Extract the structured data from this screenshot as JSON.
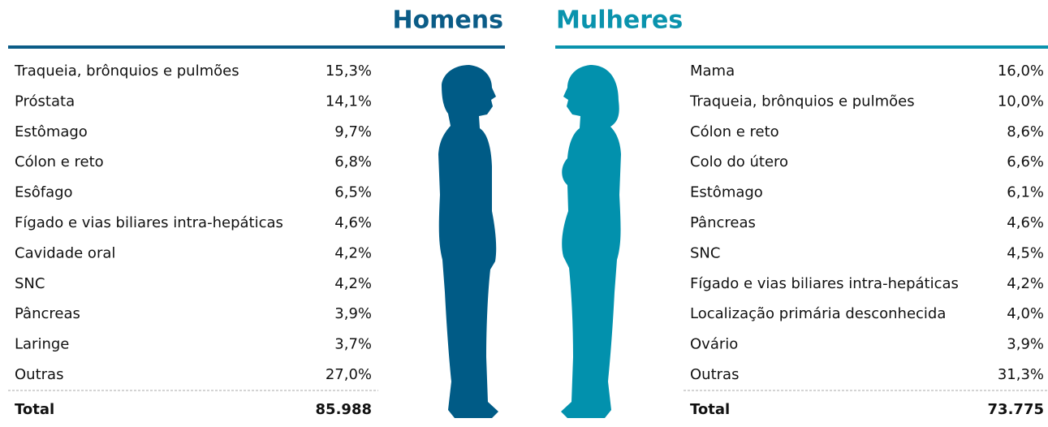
{
  "header": {
    "left_title": "Homens",
    "right_title": "Mulheres"
  },
  "homens": {
    "rows": [
      [
        "Traqueia, brônquios e pulmões",
        "15,3%"
      ],
      [
        "Próstata",
        "14,1%"
      ],
      [
        "Estômago",
        "9,7%"
      ],
      [
        "Cólon e reto",
        "6,8%"
      ],
      [
        "Esôfago",
        "6,5%"
      ],
      [
        "Fígado e vias biliares intra-hepáticas",
        "4,6%"
      ],
      [
        "Cavidade oral",
        "4,2%"
      ],
      [
        "SNC",
        "4,2%"
      ],
      [
        "Pâncreas",
        "3,9%"
      ],
      [
        "Laringe",
        "3,7%"
      ],
      [
        "Outras",
        "27,0%"
      ]
    ],
    "total": [
      "Total",
      "85.988"
    ]
  },
  "mulheres": {
    "rows": [
      [
        "Mama",
        "16,0%"
      ],
      [
        "Traqueia, brônquios e pulmões",
        "10,0%"
      ],
      [
        "Cólon e reto",
        "8,6%"
      ],
      [
        "Colo do útero",
        "6,6%"
      ],
      [
        "Estômago",
        "6,1%"
      ],
      [
        "Pâncreas",
        "4,6%"
      ],
      [
        "SNC",
        "4,5%"
      ],
      [
        "Fígado e vias biliares intra-hepáticas",
        "4,2%"
      ],
      [
        "Localização primária desconhecida",
        "4,0%"
      ],
      [
        "Ovário",
        "3,9%"
      ],
      [
        "Outras",
        "31,3%"
      ]
    ],
    "total": [
      "Total",
      "73.775"
    ]
  }
}
